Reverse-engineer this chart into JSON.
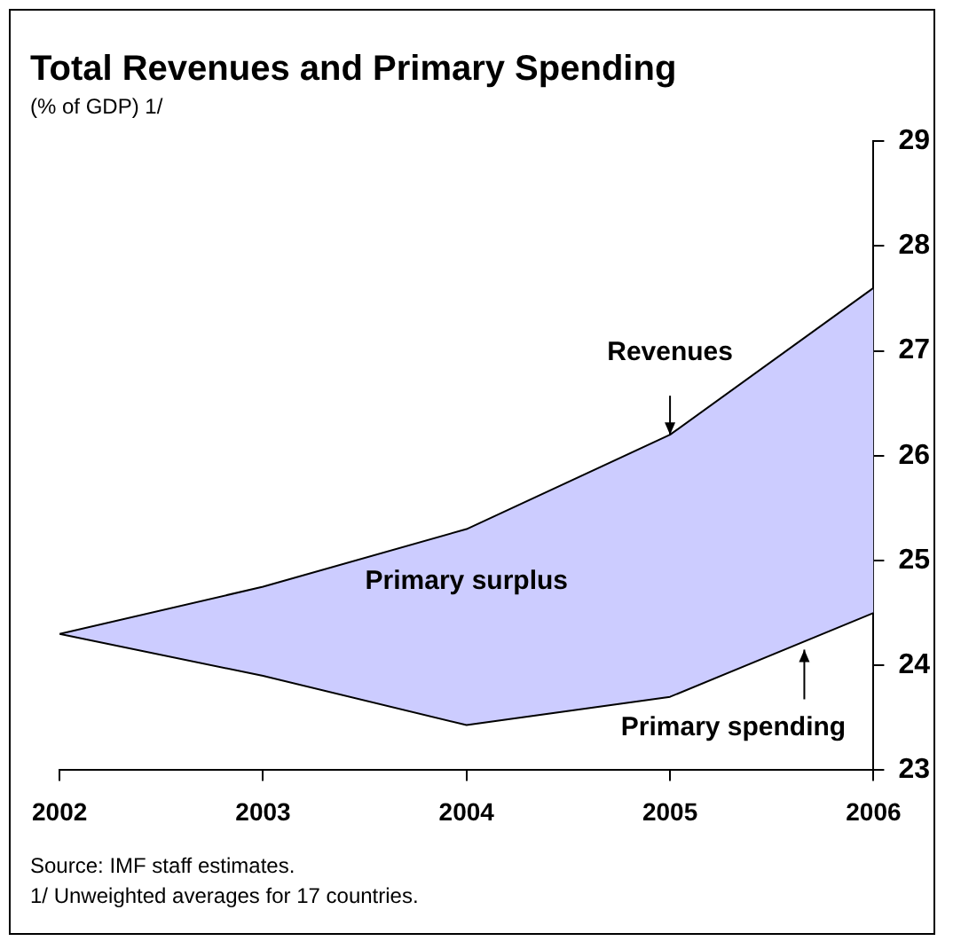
{
  "chart_data": {
    "type": "area",
    "title": "Total Revenues and Primary Spending",
    "subtitle": "(% of GDP) 1/",
    "x": [
      2002,
      2003,
      2004,
      2005,
      2006
    ],
    "series": [
      {
        "type": "line",
        "color": "#000000",
        "values": [
          24.3,
          23.9,
          23.43,
          23.7,
          24.5
        ]
      },
      {
        "color": "#ccccff",
        "values": [
          24.3,
          24.75,
          25.3,
          26.2,
          27.6
        ]
      }
    ],
    "xlim": [
      2002,
      2006
    ],
    "xticks": [
      2002,
      2003,
      2004,
      2005,
      2006
    ],
    "ylim": [
      23,
      29
    ],
    "yticks": [
      23,
      24,
      25,
      26,
      27,
      28,
      29
    ],
    "grid": false,
    "legend": false,
    "annotations": [
      {
        "text": "Revenues",
        "x": 2005,
        "y": 26.2
      },
      "Primary surplus",
      {
        "text": "Primary spending",
        "x": 2005.66,
        "y": 24.15
      },
      "Source: IMF staff estimates.",
      "1/ Unweighted averages for 17 countries."
    ]
  }
}
